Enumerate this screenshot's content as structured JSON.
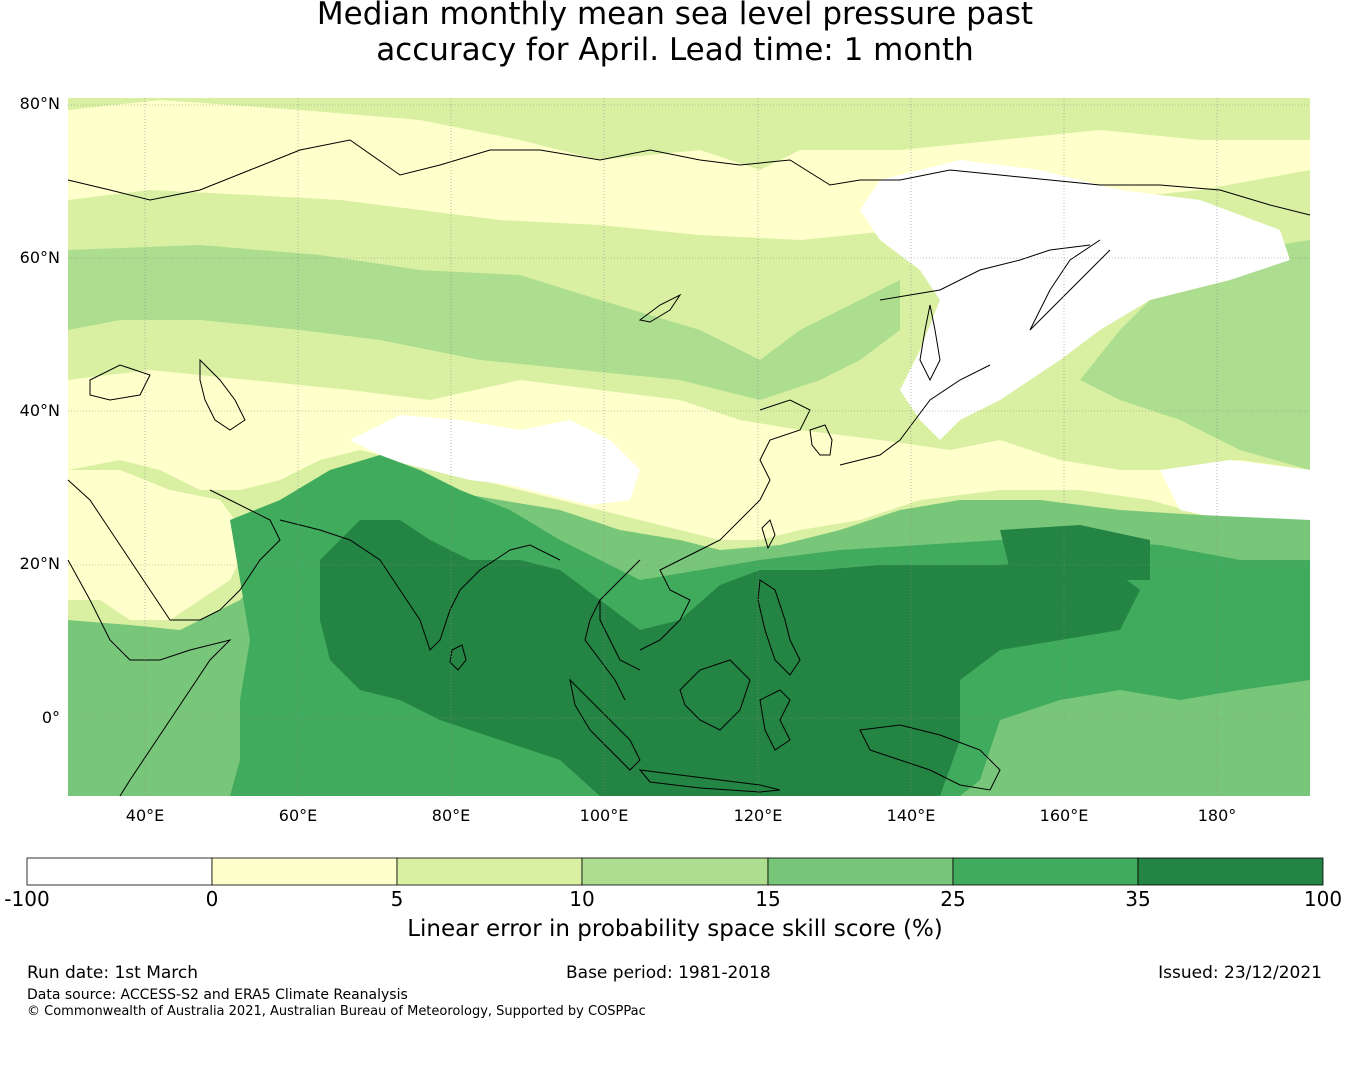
{
  "title": {
    "line1": "Median monthly mean sea level pressure past",
    "line2": "accuracy for April. Lead time: 1 month"
  },
  "map": {
    "lat_labels": [
      "80°N",
      "60°N",
      "40°N",
      "20°N",
      "0°"
    ],
    "lon_labels": [
      "40°E",
      "60°E",
      "80°E",
      "100°E",
      "120°E",
      "140°E",
      "160°E",
      "180°"
    ],
    "lat_range": [
      -10,
      80
    ],
    "lon_range": [
      30,
      192
    ],
    "grid": true
  },
  "colorbar": {
    "title": "Linear error in probability space skill score (%)",
    "ticks": [
      "-100",
      "0",
      "5",
      "10",
      "15",
      "25",
      "35",
      "100"
    ],
    "colors": [
      "#ffffff",
      "#ffffcc",
      "#d9f0a3",
      "#addd8e",
      "#78c679",
      "#41ab5d",
      "#238443"
    ]
  },
  "footer": {
    "run_date": "Run date: 1st March",
    "base_period": "Base period: 1981-2018",
    "issued": "Issued: 23/12/2021",
    "data_source": "Data source: ACCESS-S2 and ERA5 Climate Reanalysis",
    "copyright": "© Commonwealth of Australia 2021, Australian Bureau of Meteorology, Supported by COSPPac"
  }
}
